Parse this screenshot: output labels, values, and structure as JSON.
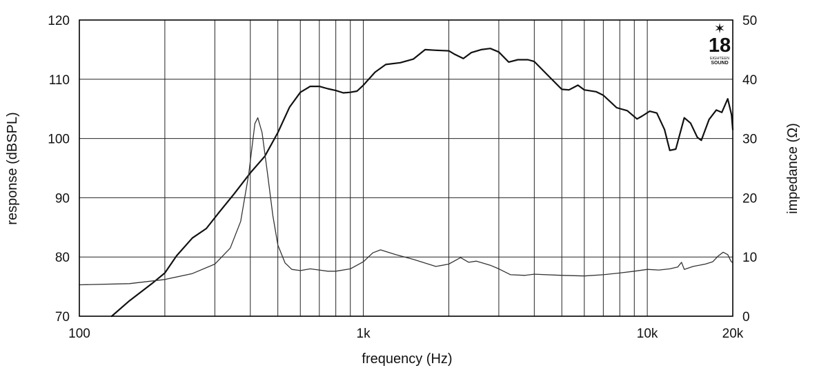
{
  "brand": {
    "logo_number": "18",
    "logo_line1": "EIGHTEEN",
    "logo_line2": "SOUND",
    "star_color": "#e32228"
  },
  "chart_data": {
    "type": "line",
    "xlabel": "frequency (Hz)",
    "ylabel": "response (dBSPL)",
    "y2label": "impedance (Ω)",
    "x_scale": "log",
    "xlim": [
      100,
      20000
    ],
    "ylim": [
      70,
      120
    ],
    "y2lim": [
      0,
      50
    ],
    "grid": true,
    "legend": "none",
    "x_ticks": [
      {
        "value": 100,
        "label": "100"
      },
      {
        "value": 1000,
        "label": "1k"
      },
      {
        "value": 10000,
        "label": "10k"
      },
      {
        "value": 20000,
        "label": "20k"
      }
    ],
    "x_gridlines": [
      200,
      300,
      400,
      500,
      600,
      700,
      800,
      900,
      1000,
      2000,
      3000,
      4000,
      5000,
      6000,
      7000,
      8000,
      9000,
      10000
    ],
    "y_ticks": [
      {
        "value": 70,
        "label": "70"
      },
      {
        "value": 80,
        "label": "80"
      },
      {
        "value": 90,
        "label": "90"
      },
      {
        "value": 100,
        "label": "100"
      },
      {
        "value": 110,
        "label": "110"
      },
      {
        "value": 120,
        "label": "120"
      }
    ],
    "y2_ticks": [
      {
        "value": 0,
        "label": "0"
      },
      {
        "value": 10,
        "label": "10"
      },
      {
        "value": 20,
        "label": "20"
      },
      {
        "value": 30,
        "label": "30"
      },
      {
        "value": 40,
        "label": "40"
      },
      {
        "value": 50,
        "label": "50"
      }
    ],
    "series": [
      {
        "axis": "left",
        "color": "#111111",
        "points": [
          [
            130,
            70.0
          ],
          [
            150,
            72.6
          ],
          [
            180,
            75.5
          ],
          [
            200,
            77.3
          ],
          [
            220,
            80.2
          ],
          [
            250,
            83.2
          ],
          [
            280,
            84.8
          ],
          [
            310,
            87.5
          ],
          [
            350,
            90.6
          ],
          [
            400,
            94.2
          ],
          [
            450,
            97.0
          ],
          [
            500,
            101.0
          ],
          [
            550,
            105.3
          ],
          [
            600,
            107.8
          ],
          [
            650,
            108.8
          ],
          [
            700,
            108.8
          ],
          [
            750,
            108.4
          ],
          [
            800,
            108.1
          ],
          [
            850,
            107.7
          ],
          [
            900,
            107.8
          ],
          [
            950,
            108.0
          ],
          [
            1000,
            109.0
          ],
          [
            1100,
            111.2
          ],
          [
            1200,
            112.5
          ],
          [
            1350,
            112.8
          ],
          [
            1500,
            113.4
          ],
          [
            1650,
            115.0
          ],
          [
            1800,
            114.9
          ],
          [
            2000,
            114.8
          ],
          [
            2100,
            114.2
          ],
          [
            2250,
            113.5
          ],
          [
            2400,
            114.5
          ],
          [
            2600,
            115.0
          ],
          [
            2800,
            115.2
          ],
          [
            3000,
            114.6
          ],
          [
            3250,
            112.9
          ],
          [
            3500,
            113.3
          ],
          [
            3800,
            113.3
          ],
          [
            4000,
            113.0
          ],
          [
            4500,
            110.5
          ],
          [
            5000,
            108.3
          ],
          [
            5300,
            108.2
          ],
          [
            5700,
            109.0
          ],
          [
            6000,
            108.2
          ],
          [
            6600,
            107.9
          ],
          [
            7000,
            107.3
          ],
          [
            7800,
            105.2
          ],
          [
            8500,
            104.7
          ],
          [
            9200,
            103.3
          ],
          [
            9600,
            103.8
          ],
          [
            10200,
            104.6
          ],
          [
            10800,
            104.3
          ],
          [
            11500,
            101.5
          ],
          [
            12000,
            98.0
          ],
          [
            12600,
            98.2
          ],
          [
            13500,
            103.5
          ],
          [
            14200,
            102.6
          ],
          [
            15000,
            100.2
          ],
          [
            15500,
            99.7
          ],
          [
            16500,
            103.2
          ],
          [
            17500,
            104.8
          ],
          [
            18300,
            104.4
          ],
          [
            19200,
            106.7
          ],
          [
            19800,
            104.0
          ],
          [
            20000,
            101.5
          ]
        ]
      },
      {
        "axis": "right",
        "color": "#333333",
        "points": [
          [
            100,
            5.3
          ],
          [
            150,
            5.5
          ],
          [
            200,
            6.2
          ],
          [
            250,
            7.2
          ],
          [
            300,
            8.8
          ],
          [
            340,
            11.5
          ],
          [
            370,
            16.0
          ],
          [
            395,
            24.0
          ],
          [
            415,
            32.5
          ],
          [
            425,
            33.5
          ],
          [
            440,
            31.0
          ],
          [
            460,
            24.0
          ],
          [
            480,
            17.0
          ],
          [
            500,
            12.0
          ],
          [
            530,
            9.0
          ],
          [
            560,
            7.9
          ],
          [
            600,
            7.7
          ],
          [
            650,
            8.0
          ],
          [
            700,
            7.8
          ],
          [
            750,
            7.6
          ],
          [
            800,
            7.6
          ],
          [
            900,
            8.0
          ],
          [
            1000,
            9.2
          ],
          [
            1080,
            10.7
          ],
          [
            1150,
            11.2
          ],
          [
            1300,
            10.4
          ],
          [
            1500,
            9.6
          ],
          [
            1800,
            8.4
          ],
          [
            2000,
            8.8
          ],
          [
            2200,
            9.9
          ],
          [
            2350,
            9.1
          ],
          [
            2500,
            9.3
          ],
          [
            2800,
            8.6
          ],
          [
            3000,
            8.0
          ],
          [
            3300,
            7.0
          ],
          [
            3700,
            6.9
          ],
          [
            4000,
            7.1
          ],
          [
            5000,
            6.9
          ],
          [
            6000,
            6.8
          ],
          [
            7000,
            7.0
          ],
          [
            8000,
            7.3
          ],
          [
            9000,
            7.6
          ],
          [
            10000,
            7.9
          ],
          [
            11000,
            7.8
          ],
          [
            12000,
            8.0
          ],
          [
            12800,
            8.3
          ],
          [
            13200,
            9.1
          ],
          [
            13500,
            7.9
          ],
          [
            14500,
            8.4
          ],
          [
            16000,
            8.8
          ],
          [
            17000,
            9.2
          ],
          [
            17800,
            10.2
          ],
          [
            18500,
            10.8
          ],
          [
            19200,
            10.4
          ],
          [
            19700,
            9.3
          ],
          [
            20000,
            9.0
          ]
        ]
      }
    ]
  }
}
